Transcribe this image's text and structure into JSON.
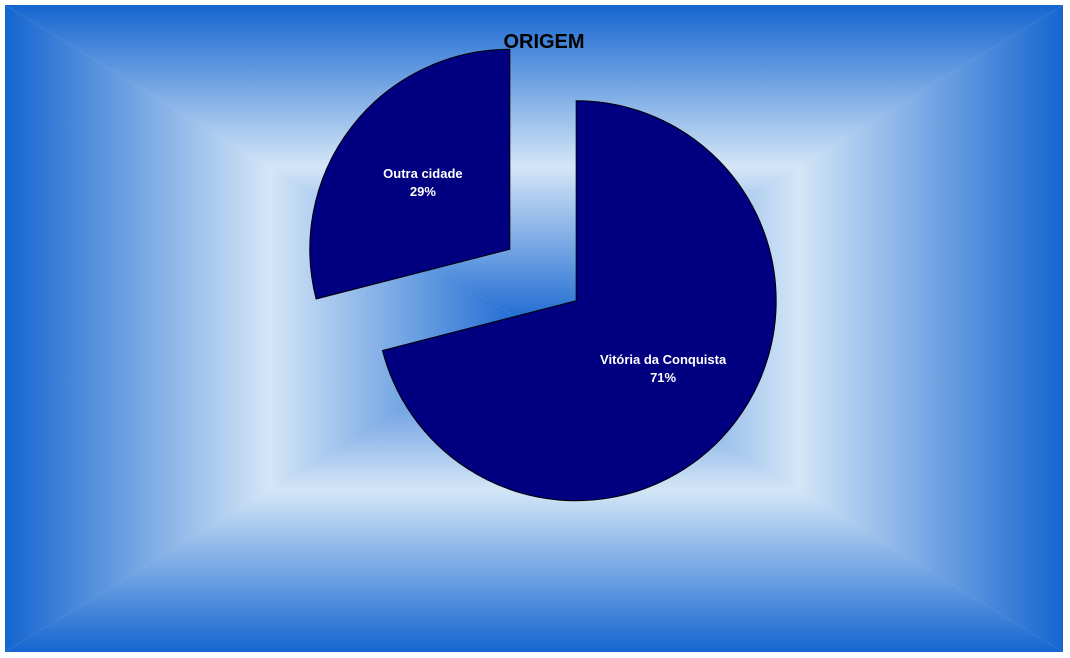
{
  "chart_data": {
    "type": "pie",
    "title": "ORIGEM",
    "categories": [
      "Vitória da Conquista",
      "Outra cidade"
    ],
    "values": [
      71,
      29
    ],
    "labels": [
      "71%",
      "29%"
    ],
    "exploded": true,
    "legend": "none"
  },
  "colors": {
    "slice_fill": "#000080",
    "slice_stroke": "#000000",
    "label_text": "#ffffff",
    "background_center": "#d4e6f7",
    "background_edge": "#1565d0"
  }
}
